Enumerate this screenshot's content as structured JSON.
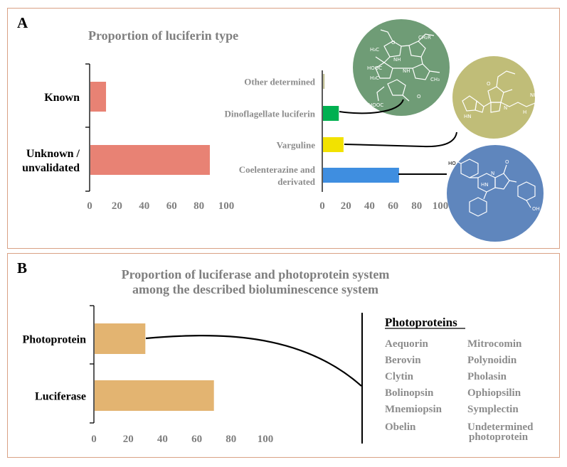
{
  "panel_a": {
    "letter": "A",
    "title": "Proportion of luciferin type"
  },
  "panel_b": {
    "letter": "B",
    "title_line1": "Proportion of luciferase and photoprotein system",
    "title_line2": "among the described bioluminescence system"
  },
  "colors": {
    "panel_border": "#d9a184",
    "known_unknown_bar": "#e88274",
    "other_determined": "#c5c39a",
    "dinoflagellate": "#00b050",
    "varguline": "#f2e200",
    "coelenterazine": "#3f8ee0",
    "luciferase_bars": "#e3b471",
    "green_circle": "#6f9c76",
    "olive_circle": "#c0bd78",
    "blue_circle": "#5f86bd"
  },
  "photoproteins": {
    "heading": "Photoproteins",
    "col1": [
      "Aequorin",
      "Berovin",
      "Clytin",
      "Bolinopsin",
      "Mnemiopsin",
      "Obelin"
    ],
    "col2": [
      "Mitrocomin",
      "Polynoidin",
      "Pholasin",
      "Ophiopsilin",
      "Symplectin",
      "Undetermined",
      "photoprotein"
    ]
  },
  "molecule_icons": [
    "bilin-tetrapyrrole-icon",
    "vargulin-icon",
    "coelenterazine-icon"
  ],
  "chart_data": [
    {
      "id": "luciferin_known",
      "type": "bar",
      "orientation": "horizontal",
      "title": "Proportion of luciferin type",
      "categories": [
        "Known",
        "Unknown / unvalidated"
      ],
      "category_lines": [
        [
          "Known"
        ],
        [
          "Unknown /",
          "unvalidated"
        ]
      ],
      "values": [
        12,
        88
      ],
      "xlim": [
        0,
        100
      ],
      "xticks": [
        0,
        20,
        40,
        60,
        80,
        100
      ],
      "grid": false
    },
    {
      "id": "luciferin_types",
      "type": "bar",
      "orientation": "horizontal",
      "categories": [
        "Other determined",
        "Dinoflagellate luciferin",
        "Varguline",
        "Coelenterazine and derivated"
      ],
      "category_lines": [
        [
          "Other determined"
        ],
        [
          "Dinoflagellate luciferin"
        ],
        [
          "Varguline"
        ],
        [
          "Coelenterazine and",
          "derivated"
        ]
      ],
      "values": [
        2,
        14,
        18,
        65
      ],
      "xlim": [
        0,
        100
      ],
      "xticks": [
        0,
        20,
        40,
        60,
        80,
        100
      ],
      "grid": false
    },
    {
      "id": "luciferase_photoprotein",
      "type": "bar",
      "orientation": "horizontal",
      "title": "Proportion of luciferase and photoprotein system among the described bioluminescence system",
      "categories": [
        "Photoprotein",
        "Luciferase"
      ],
      "values": [
        30,
        70
      ],
      "xlim": [
        0,
        100
      ],
      "xticks": [
        0,
        20,
        40,
        60,
        80,
        100
      ],
      "grid": false
    }
  ]
}
